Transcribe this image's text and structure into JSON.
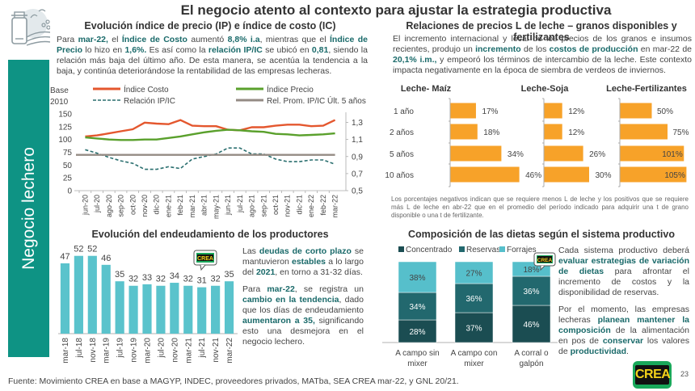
{
  "page": {
    "title": "El negocio atento al contexto para ajustar la estrategia productiva",
    "side_label": "Negocio lechero",
    "source": "Fuente: Movimiento CREA en base a MAGYP, INDEC, proveedores privados, MATba, SEA CREA mar-22, y GNL 20/21.",
    "page_number": "23",
    "logo_text": "CREA",
    "colors": {
      "teal": "#0e9384",
      "dark_teal": "#1a6a6a",
      "orange": "#f7a229",
      "cost_line": "#e4572e",
      "price_line": "#5aa02c",
      "ratio_line": "#2a6f6f",
      "avg_line": "#948b84",
      "bar_light": "#5ac3cc"
    }
  },
  "index_section": {
    "title": "Evolución índice de precio (IP) e índice de costo (IC)",
    "para": [
      {
        "t": "Para ",
        "b": false
      },
      {
        "t": "mar-22,",
        "b": true
      },
      {
        "t": " el ",
        "b": false
      },
      {
        "t": "Índice de Costo",
        "b": true
      },
      {
        "t": " aumentó ",
        "b": false
      },
      {
        "t": "8,8% i.a",
        "b": true
      },
      {
        "t": ", mientras que el ",
        "b": false
      },
      {
        "t": "Índice de Precio",
        "b": true
      },
      {
        "t": " lo hizo en ",
        "b": false
      },
      {
        "t": "1,6%.",
        "b": true
      },
      {
        "t": " Es así como la ",
        "b": false
      },
      {
        "t": "relación IP/IC",
        "b": true
      },
      {
        "t": " se ubicó en ",
        "b": false
      },
      {
        "t": "0,81",
        "b": true
      },
      {
        "t": ", siendo la relación más baja del último año. De esta manera, se acentúa la tendencia a la baja, y continúa deteriorándose la rentabilidad de las empresas lecheras.",
        "b": false
      }
    ]
  },
  "debt_section": {
    "title": "Evolución del endeudamiento de los productores",
    "para1": [
      {
        "t": "Las ",
        "b": false
      },
      {
        "t": "deudas de corto plazo",
        "b": true
      },
      {
        "t": " se mantuvieron ",
        "b": false
      },
      {
        "t": "estables",
        "b": true
      },
      {
        "t": " a lo largo del ",
        "b": false
      },
      {
        "t": "2021",
        "b": true
      },
      {
        "t": ", en torno a 31-32 días.",
        "b": false
      }
    ],
    "para2": [
      {
        "t": "Para ",
        "b": false
      },
      {
        "t": "mar-22",
        "b": true
      },
      {
        "t": ", se registra un ",
        "b": false
      },
      {
        "t": "cambio en la tendencia",
        "b": true
      },
      {
        "t": ", dado que los días de endeudamiento ",
        "b": false
      },
      {
        "t": "aumentaron a 35,",
        "b": true
      },
      {
        "t": " significando esto una desmejora en el negocio lechero.",
        "b": false
      }
    ]
  },
  "relations_section": {
    "title": "Relaciones de precios L de leche – granos disponibles y fertilizantes",
    "para": [
      {
        "t": "El incremento internacional y local de los precios de los granos e insumos recientes, produjo un ",
        "b": false
      },
      {
        "t": "incremento",
        "b": true
      },
      {
        "t": " de los ",
        "b": false
      },
      {
        "t": "costos de producción",
        "b": true
      },
      {
        "t": " en mar-22 de ",
        "b": false
      },
      {
        "t": "20,1% i.m.,",
        "b": true
      },
      {
        "t": " y empeoró los términos de intercambio de la leche. Este contexto impacta negativamente en la época de siembra de verdeos de inviernos.",
        "b": false
      }
    ],
    "note": "Los porcentajes negativos indican que se requiere menos L de leche y los positivos que se requiere más L de leche en abr-22 que en el promedio del período indicado para adquirir una t de grano disponible o una t de fertilizante."
  },
  "diet_section": {
    "title": "Composición de las dietas según el sistema productivo",
    "para1": [
      {
        "t": "Cada sistema productivo deberá ",
        "b": false
      },
      {
        "t": "evaluar estrategias de variación de dietas",
        "b": true
      },
      {
        "t": " para afrontar el incremento de costos y la disponibilidad de reservas.",
        "b": false
      }
    ],
    "para2": [
      {
        "t": "Por el momento, las empresas lecheras ",
        "b": false
      },
      {
        "t": "planean mantener la composición",
        "b": true
      },
      {
        "t": " de la alimentación en pos de ",
        "b": false
      },
      {
        "t": "conservar",
        "b": true
      },
      {
        "t": " los valores de ",
        "b": false
      },
      {
        "t": "productividad",
        "b": true
      },
      {
        "t": ".",
        "b": false
      }
    ]
  },
  "chart_data": [
    {
      "id": "index_chart",
      "type": "line",
      "title": "Evolución índice de precio (IP) e índice de costo (IC)",
      "ylabel": "Base 2010",
      "x": [
        "jun-20",
        "jul-20",
        "ago-20",
        "sep-20",
        "oct-20",
        "nov-20",
        "dic-20",
        "ene-21",
        "feb-21",
        "mar-21",
        "abr-21",
        "may-21",
        "jun-21",
        "jul-21",
        "ago-21",
        "sep-21",
        "oct-21",
        "nov-21",
        "dic-21",
        "ene-22",
        "feb-22",
        "mar-22"
      ],
      "ylim": [
        0,
        150
      ],
      "yticks": [
        0,
        25,
        50,
        75,
        100,
        125,
        150
      ],
      "y2lim": [
        0.5,
        1.4
      ],
      "y2ticks": [
        "0,5",
        "0,7",
        "0,9",
        "1,1",
        "1,3"
      ],
      "y2values": [
        0.5,
        0.7,
        0.9,
        1.1,
        1.3
      ],
      "series": [
        {
          "name": "Índice Costo",
          "axis": "left",
          "style": "solid",
          "color": "#e4572e",
          "values": [
            106,
            108,
            112,
            116,
            120,
            133,
            131,
            130,
            138,
            127,
            126,
            126,
            119,
            118,
            124,
            124,
            127,
            129,
            129,
            126,
            127,
            138
          ]
        },
        {
          "name": "Índice Precio",
          "axis": "left",
          "style": "solid",
          "color": "#5aa02c",
          "values": [
            104,
            102,
            100,
            99,
            99,
            100,
            100,
            103,
            106,
            110,
            114,
            117,
            119,
            118,
            116,
            115,
            111,
            110,
            108,
            109,
            110,
            112
          ]
        },
        {
          "name": "Relación IP/IC",
          "axis": "right",
          "style": "dashed",
          "color": "#2a6f6f",
          "values": [
            0.98,
            0.94,
            0.89,
            0.85,
            0.82,
            0.75,
            0.75,
            0.78,
            0.76,
            0.87,
            0.9,
            0.93,
            1.0,
            1.0,
            0.93,
            0.93,
            0.87,
            0.84,
            0.84,
            0.86,
            0.86,
            0.81
          ]
        },
        {
          "name": "Rel. Prom. IP/IC Últ. 5 años",
          "axis": "right",
          "style": "solid",
          "color": "#948b84",
          "values": [
            0.92,
            0.92,
            0.92,
            0.92,
            0.92,
            0.92,
            0.92,
            0.92,
            0.92,
            0.92,
            0.92,
            0.92,
            0.92,
            0.92,
            0.92,
            0.92,
            0.92,
            0.92,
            0.92,
            0.92,
            0.92,
            0.92
          ]
        }
      ],
      "legend": "top",
      "grid": false
    },
    {
      "id": "debt_chart",
      "type": "bar",
      "title": "Evolución del endeudamiento de los productores",
      "categories": [
        "mar-18",
        "jul-18",
        "nov-18",
        "mar-19",
        "jul-19",
        "nov-19",
        "mar-20",
        "jul-20",
        "nov-20",
        "mar-21",
        "jul-21",
        "nov-21",
        "mar-22"
      ],
      "values": [
        47,
        52,
        52,
        46,
        35,
        32,
        33,
        32,
        34,
        32,
        31,
        32,
        35
      ],
      "ylim": [
        0,
        60
      ],
      "color": "#5ac3cc",
      "grid": false
    },
    {
      "id": "price_relations_chart",
      "type": "bar",
      "orientation": "horizontal",
      "categories": [
        "1 año",
        "2 años",
        "5 años",
        "10 años"
      ],
      "panels": [
        {
          "name": "Leche- Maíz",
          "values": [
            17,
            18,
            34,
            46
          ]
        },
        {
          "name": "Leche-Soja",
          "values": [
            12,
            12,
            26,
            30
          ]
        },
        {
          "name": "Leche-Fertilizantes",
          "values": [
            50,
            75,
            101,
            105
          ]
        }
      ],
      "unit": "%",
      "color": "#f7a229"
    },
    {
      "id": "diet_chart",
      "type": "bar",
      "stacked": true,
      "categories": [
        "A campo sin mixer",
        "A campo con mixer",
        "A corral o galpón"
      ],
      "series": [
        {
          "name": "Concentrado",
          "color": "#1b4d52",
          "values": [
            28,
            37,
            46
          ]
        },
        {
          "name": "Reservas",
          "color": "#22686e",
          "values": [
            34,
            36,
            36
          ]
        },
        {
          "name": "Forrajes",
          "color": "#56bfcb",
          "values": [
            38,
            27,
            18
          ]
        }
      ],
      "unit": "%",
      "legend": "top"
    }
  ]
}
